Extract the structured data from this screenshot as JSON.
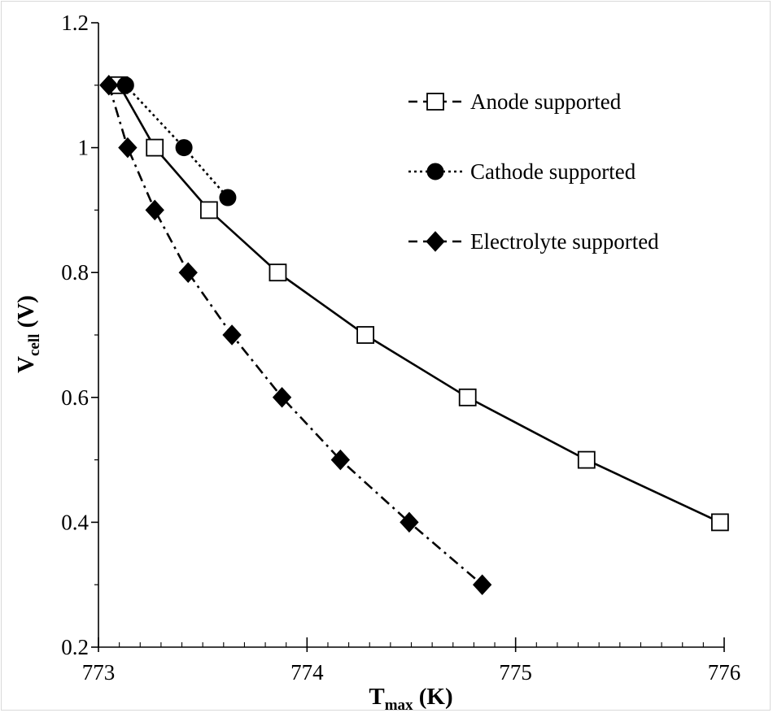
{
  "chart_data": {
    "type": "line",
    "title": "",
    "xlabel": "T",
    "xlabel_sub": "max",
    "xlabel_unit": " (K)",
    "ylabel": "V",
    "ylabel_sub": "cell",
    "ylabel_unit": " (V)",
    "xlim": [
      773,
      776
    ],
    "ylim": [
      0.2,
      1.2
    ],
    "x_ticks": [
      773,
      774,
      775,
      776
    ],
    "x_tick_labels": [
      "773",
      "774",
      "775",
      "776"
    ],
    "y_ticks": [
      0.2,
      0.4,
      0.6,
      0.8,
      1.0,
      1.2
    ],
    "y_tick_labels": [
      "0.2",
      "0.4",
      "0.6",
      "0.8",
      "1",
      "1.2"
    ],
    "grid": false,
    "legend_position": "top-right",
    "series": [
      {
        "name": "Anode supported",
        "marker": "square-open",
        "line_style": "solid",
        "legend_line_style": "dashed",
        "x": [
          773.1,
          773.27,
          773.53,
          773.86,
          774.28,
          774.77,
          775.34,
          775.98
        ],
        "y": [
          1.1,
          1.0,
          0.9,
          0.8,
          0.7,
          0.6,
          0.5,
          0.4
        ]
      },
      {
        "name": "Cathode supported",
        "marker": "circle-filled",
        "line_style": "dotted",
        "legend_line_style": "dotted",
        "x": [
          773.13,
          773.41,
          773.62
        ],
        "y": [
          1.1,
          1.0,
          0.92
        ]
      },
      {
        "name": "Electrolyte supported",
        "marker": "diamond-filled",
        "line_style": "dash-dot",
        "legend_line_style": "dashed",
        "x": [
          773.05,
          773.14,
          773.27,
          773.43,
          773.64,
          773.88,
          774.16,
          774.49,
          774.84
        ],
        "y": [
          1.1,
          1.0,
          0.9,
          0.8,
          0.7,
          0.6,
          0.5,
          0.4,
          0.3
        ]
      }
    ]
  }
}
